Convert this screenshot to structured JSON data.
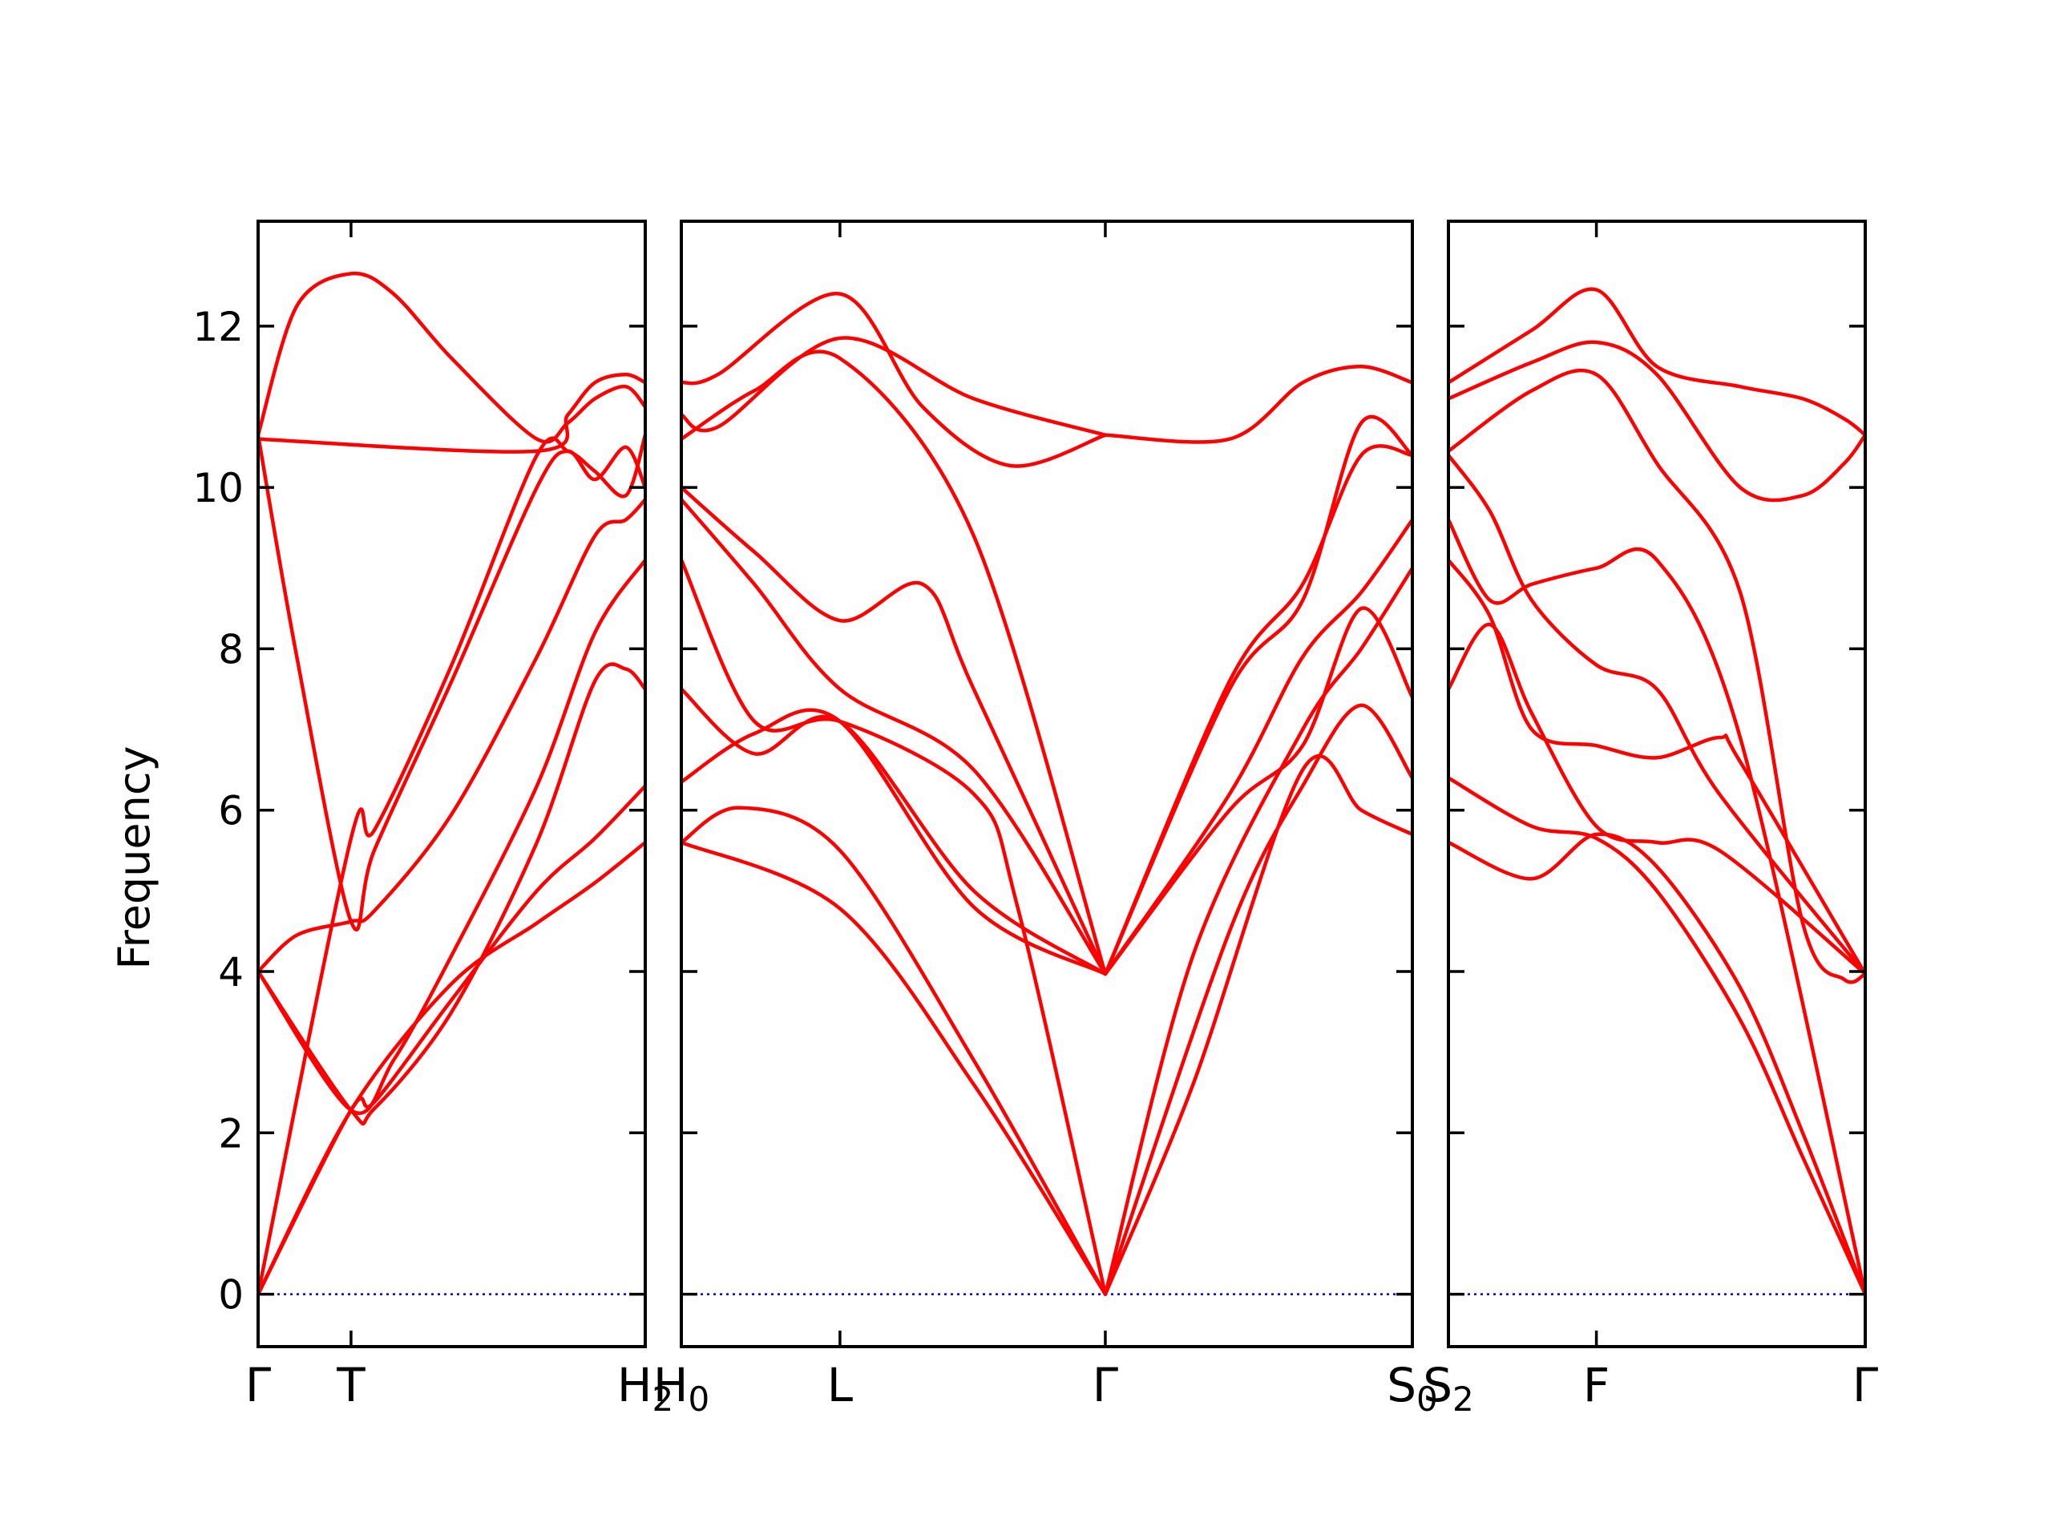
{
  "chart_data": {
    "type": "line",
    "title": "",
    "ylabel": "Frequency",
    "ylim": [
      -0.65,
      13.3
    ],
    "yticks": [
      "0",
      "2",
      "4",
      "6",
      "8",
      "10",
      "12"
    ],
    "band_color": "#ff0000",
    "zero_line_color": "#0000cc",
    "panels": [
      {
        "name": "panel-1",
        "xticks": [
          {
            "x": 0.0,
            "label": "Γ",
            "sub": ""
          },
          {
            "x": 0.24,
            "label": "T",
            "sub": ""
          },
          {
            "x": 1.0,
            "label": "H",
            "sub": "2"
          }
        ],
        "series": [
          {
            "x": [
              0,
              0.24,
              0.5,
              0.72,
              0.87,
              1.0
            ],
            "y": [
              0,
              2.28,
              3.85,
              4.6,
              5.1,
              5.6
            ]
          },
          {
            "x": [
              0,
              0.24,
              0.3,
              0.5,
              0.72,
              0.87,
              1.0
            ],
            "y": [
              0,
              2.28,
              2.38,
              3.65,
              5.0,
              5.65,
              6.3
            ]
          },
          {
            "x": [
              0,
              0.24,
              0.3,
              0.5,
              0.72,
              0.87,
              0.95,
              1.0
            ],
            "y": [
              4.0,
              2.28,
              2.3,
              3.5,
              5.6,
              7.6,
              7.75,
              7.5
            ]
          },
          {
            "x": [
              0,
              0.24,
              0.35,
              0.5,
              0.72,
              0.87,
              1.0
            ],
            "y": [
              4.0,
              2.28,
              2.9,
              4.2,
              6.3,
              8.2,
              9.1
            ]
          },
          {
            "x": [
              0,
              0.1,
              0.24,
              0.3,
              0.5,
              0.72,
              0.87,
              0.95,
              1.0
            ],
            "y": [
              4.0,
              4.45,
              4.62,
              4.75,
              5.95,
              7.9,
              9.4,
              9.6,
              9.85
            ]
          },
          {
            "x": [
              0,
              0.24,
              0.3,
              0.5,
              0.72,
              0.8,
              0.87,
              0.95,
              1.0
            ],
            "y": [
              0,
              5.65,
              5.75,
              7.8,
              10.4,
              10.45,
              10.2,
              9.9,
              10.65
            ]
          },
          {
            "x": [
              0,
              0.1,
              0.24,
              0.3,
              0.5,
              0.72,
              0.8,
              0.87,
              0.95,
              1.0
            ],
            "y": [
              10.65,
              7.9,
              4.62,
              5.5,
              7.6,
              10.0,
              10.45,
              10.1,
              10.5,
              10.0
            ]
          },
          {
            "x": [
              0,
              0.1,
              0.24,
              0.35,
              0.5,
              0.72,
              0.8,
              0.87,
              0.95,
              1.0
            ],
            "y": [
              10.65,
              12.25,
              12.65,
              12.4,
              11.6,
              10.6,
              10.8,
              11.1,
              11.25,
              11.0
            ]
          },
          {
            "x": [
              0,
              0.72,
              0.8,
              0.87,
              0.95,
              1.0
            ],
            "y": [
              10.6,
              10.45,
              10.9,
              11.3,
              11.4,
              11.3
            ]
          }
        ]
      },
      {
        "name": "panel-2",
        "xticks": [
          {
            "x": 0.0,
            "label": "H",
            "sub": "0"
          },
          {
            "x": 0.217,
            "label": "L",
            "sub": ""
          },
          {
            "x": 0.58,
            "label": "Γ",
            "sub": ""
          },
          {
            "x": 1.0,
            "label": "S",
            "sub": "0"
          }
        ],
        "series": [
          {
            "x": [
              0,
              0.217,
              0.4,
              0.58
            ],
            "y": [
              5.6,
              4.78,
              2.6,
              0
            ]
          },
          {
            "x": [
              0,
              0.08,
              0.217,
              0.4,
              0.58
            ],
            "y": [
              5.6,
              6.03,
              5.5,
              2.9,
              0
            ]
          },
          {
            "x": [
              0,
              0.1,
              0.217,
              0.4,
              0.58
            ],
            "y": [
              6.35,
              6.95,
              7.1,
              4.8,
              3.97
            ]
          },
          {
            "x": [
              0,
              0.1,
              0.217,
              0.4,
              0.58
            ],
            "y": [
              7.5,
              6.7,
              7.1,
              5.0,
              3.97
            ]
          },
          {
            "x": [
              0,
              0.1,
              0.217,
              0.4,
              0.46,
              0.58
            ],
            "y": [
              9.1,
              7.1,
              7.1,
              6.2,
              4.8,
              0
            ]
          },
          {
            "x": [
              0,
              0.1,
              0.217,
              0.4,
              0.58
            ],
            "y": [
              9.85,
              8.8,
              7.5,
              6.5,
              3.97
            ]
          },
          {
            "x": [
              0,
              0.1,
              0.217,
              0.33,
              0.4,
              0.58
            ],
            "y": [
              10.0,
              9.2,
              8.35,
              8.8,
              7.5,
              3.97
            ]
          },
          {
            "x": [
              0,
              0.1,
              0.217,
              0.4,
              0.58
            ],
            "y": [
              10.6,
              11.2,
              11.6,
              9.4,
              3.97
            ]
          },
          {
            "x": [
              0,
              0.05,
              0.217,
              0.4,
              0.58
            ],
            "y": [
              10.9,
              10.75,
              11.85,
              11.1,
              10.65
            ]
          },
          {
            "x": [
              0,
              0.05,
              0.217,
              0.33,
              0.45,
              0.58
            ],
            "y": [
              11.3,
              11.4,
              12.4,
              11.0,
              10.27,
              10.65
            ]
          },
          {
            "x": [
              0.58,
              0.75,
              0.85,
              0.93,
              1.0
            ],
            "y": [
              10.65,
              10.6,
              11.3,
              11.5,
              11.3
            ]
          },
          {
            "x": [
              0.58,
              0.75,
              0.85,
              0.93,
              1.0
            ],
            "y": [
              0,
              4.5,
              6.3,
              7.3,
              6.4
            ]
          },
          {
            "x": [
              0.58,
              0.7,
              0.85,
              0.93,
              1.0
            ],
            "y": [
              0,
              2.6,
              6.5,
              6.0,
              5.7
            ]
          },
          {
            "x": [
              0.58,
              0.75,
              0.85,
              0.93,
              1.0
            ],
            "y": [
              3.97,
              6.2,
              7.9,
              8.7,
              9.6
            ]
          },
          {
            "x": [
              0.58,
              0.75,
              0.85,
              0.93,
              1.0
            ],
            "y": [
              3.97,
              7.6,
              8.8,
              10.4,
              10.4
            ]
          },
          {
            "x": [
              0.58,
              0.75,
              0.85,
              0.93,
              1.0
            ],
            "y": [
              3.97,
              7.5,
              8.6,
              10.8,
              10.4
            ]
          },
          {
            "x": [
              0.58,
              0.7,
              0.85,
              0.93,
              1.0
            ],
            "y": [
              0,
              4.2,
              7.0,
              8.0,
              9.0
            ]
          },
          {
            "x": [
              0.58,
              0.75,
              0.85,
              0.93,
              1.0
            ],
            "y": [
              3.97,
              6.0,
              6.8,
              8.5,
              7.4
            ]
          }
        ]
      },
      {
        "name": "panel-3",
        "xticks": [
          {
            "x": 0.0,
            "label": "S",
            "sub": "2"
          },
          {
            "x": 0.355,
            "label": "F",
            "sub": ""
          },
          {
            "x": 1.0,
            "label": "Γ",
            "sub": ""
          }
        ],
        "series": [
          {
            "x": [
              0,
              0.2,
              0.355,
              0.5,
              0.7,
              0.85,
              1.0
            ],
            "y": [
              5.6,
              5.15,
              5.7,
              5.3,
              3.8,
              2.0,
              0
            ]
          },
          {
            "x": [
              0,
              0.2,
              0.355,
              0.5,
              0.7,
              0.85,
              1.0
            ],
            "y": [
              6.4,
              5.8,
              5.65,
              5.0,
              3.4,
              1.7,
              0
            ]
          },
          {
            "x": [
              0,
              0.1,
              0.2,
              0.355,
              0.5,
              0.65,
              1.0
            ],
            "y": [
              7.5,
              8.3,
              7.2,
              5.8,
              5.6,
              5.5,
              3.97
            ]
          },
          {
            "x": [
              0,
              0.1,
              0.2,
              0.355,
              0.5,
              0.65,
              0.7,
              1.0
            ],
            "y": [
              9.1,
              8.4,
              7.0,
              6.8,
              6.65,
              6.9,
              6.6,
              3.97
            ]
          },
          {
            "x": [
              0,
              0.1,
              0.2,
              0.355,
              0.5,
              0.7,
              1.0
            ],
            "y": [
              9.6,
              8.6,
              8.8,
              9.0,
              9.1,
              6.9,
              0
            ]
          },
          {
            "x": [
              0,
              0.1,
              0.2,
              0.355,
              0.5,
              0.65,
              1.0
            ],
            "y": [
              10.4,
              9.7,
              8.6,
              7.8,
              7.5,
              6.2,
              3.97
            ]
          },
          {
            "x": [
              0,
              0.2,
              0.355,
              0.5,
              0.7,
              0.85,
              0.95,
              1.0
            ],
            "y": [
              10.45,
              11.2,
              11.4,
              10.3,
              8.7,
              4.6,
              3.9,
              3.97
            ]
          },
          {
            "x": [
              0,
              0.2,
              0.355,
              0.5,
              0.7,
              0.85,
              0.95,
              1.0
            ],
            "y": [
              11.1,
              11.55,
              11.8,
              11.4,
              10.0,
              9.9,
              10.3,
              10.65
            ]
          },
          {
            "x": [
              0,
              0.2,
              0.355,
              0.5,
              0.7,
              0.85,
              0.95,
              1.0
            ],
            "y": [
              11.3,
              11.95,
              12.45,
              11.5,
              11.25,
              11.1,
              10.85,
              10.65
            ]
          }
        ]
      }
    ]
  }
}
